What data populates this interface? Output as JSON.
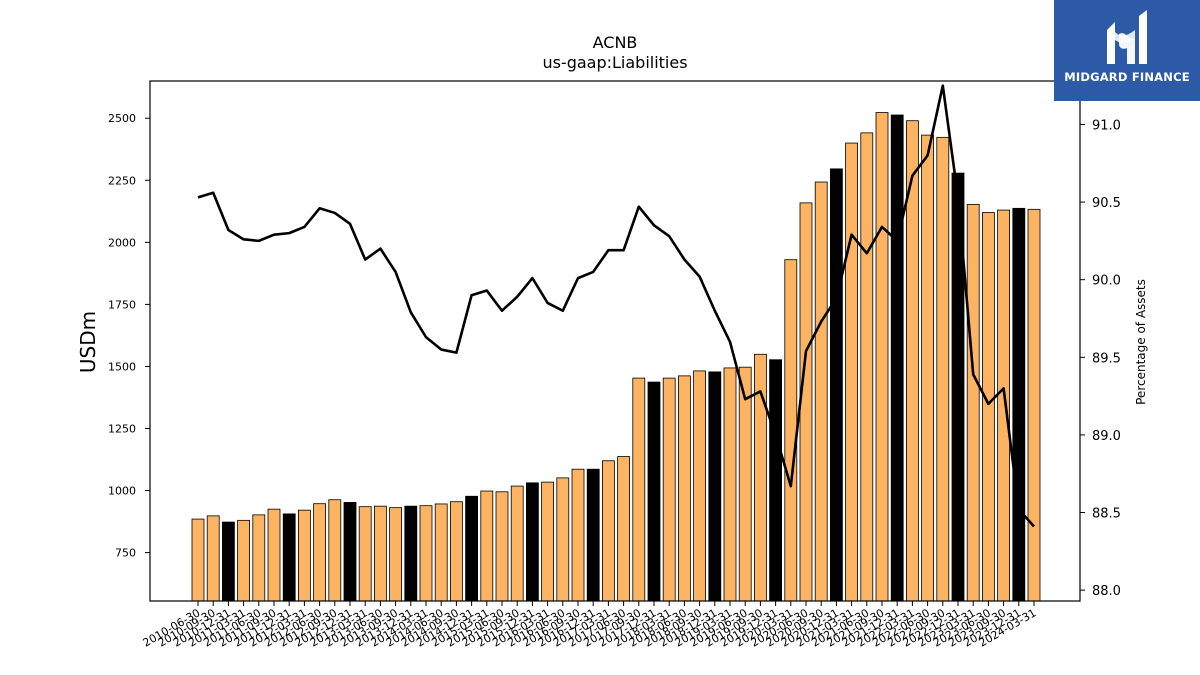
{
  "chart_data": {
    "type": "bar+line",
    "title": "ACNB",
    "subtitle": "us-gaap:Liabilities",
    "ylabel": "USDm",
    "y2label": "Percentage of Assets",
    "ylim": [
      555,
      2650
    ],
    "y2lim": [
      87.93,
      91.28
    ],
    "yticks": [
      750,
      1000,
      1250,
      1500,
      1750,
      2000,
      2250,
      2500
    ],
    "y2ticks": [
      "88.0",
      "88.5",
      "89.0",
      "89.5",
      "90.0",
      "90.5",
      "91.0"
    ],
    "grid": false,
    "bar_colors": {
      "quarter": "#fdb462",
      "year_end": "#000000",
      "edge": "#000000"
    },
    "line_color": "#000000",
    "categories": [
      "2010-06-30",
      "2010-09-30",
      "2010-12-31",
      "2011-03-31",
      "2011-06-30",
      "2011-09-30",
      "2011-12-31",
      "2012-03-31",
      "2012-06-30",
      "2012-09-30",
      "2012-12-31",
      "2013-03-31",
      "2013-06-30",
      "2013-09-30",
      "2013-12-31",
      "2014-03-31",
      "2014-06-30",
      "2014-09-30",
      "2014-12-31",
      "2015-03-31",
      "2015-06-30",
      "2015-09-30",
      "2015-12-31",
      "2016-03-31",
      "2016-06-30",
      "2016-09-30",
      "2016-12-31",
      "2017-03-31",
      "2017-06-30",
      "2017-09-30",
      "2017-12-31",
      "2018-03-31",
      "2018-06-30",
      "2018-09-30",
      "2018-12-31",
      "2019-03-31",
      "2019-06-30",
      "2019-09-30",
      "2019-12-31",
      "2020-03-31",
      "2020-06-30",
      "2020-09-30",
      "2020-12-31",
      "2021-03-31",
      "2021-06-30",
      "2021-09-30",
      "2021-12-31",
      "2022-03-31",
      "2022-06-30",
      "2022-09-30",
      "2022-12-31",
      "2023-03-31",
      "2023-06-30",
      "2023-09-30",
      "2023-12-31",
      "2024-03-31"
    ],
    "values": [
      885,
      898,
      873,
      880,
      902,
      925,
      906,
      921,
      947,
      963,
      952,
      935,
      937,
      931,
      937,
      939,
      946,
      955,
      977,
      998,
      995,
      1018,
      1031,
      1034,
      1051,
      1086,
      1086,
      1120,
      1137,
      1453,
      1437,
      1453,
      1462,
      1482,
      1478,
      1494,
      1497,
      1549,
      1527,
      1930,
      2159,
      2243,
      2296,
      2400,
      2441,
      2523,
      2513,
      2490,
      2432,
      2423,
      2279,
      2153,
      2120,
      2130,
      2137,
      2133
    ],
    "year_end": [
      false,
      false,
      true,
      false,
      false,
      false,
      true,
      false,
      false,
      false,
      true,
      false,
      false,
      false,
      true,
      false,
      false,
      false,
      true,
      false,
      false,
      false,
      true,
      false,
      false,
      false,
      true,
      false,
      false,
      false,
      true,
      false,
      false,
      false,
      true,
      false,
      false,
      false,
      true,
      false,
      false,
      false,
      true,
      false,
      false,
      false,
      true,
      false,
      false,
      false,
      true,
      false,
      false,
      false,
      true,
      false
    ],
    "series": [
      {
        "name": "Percentage of Assets",
        "axis": "right",
        "values": [
          90.53,
          90.56,
          90.32,
          90.26,
          90.25,
          90.29,
          90.3,
          90.34,
          90.46,
          90.43,
          90.36,
          90.13,
          90.2,
          90.05,
          89.79,
          89.63,
          89.55,
          89.53,
          89.9,
          89.93,
          89.8,
          89.89,
          90.01,
          89.85,
          89.8,
          90.01,
          90.05,
          90.19,
          90.19,
          90.47,
          90.35,
          90.28,
          90.13,
          90.02,
          89.8,
          89.6,
          89.23,
          89.28,
          89.0,
          88.67,
          89.54,
          89.73,
          89.88,
          90.29,
          90.17,
          90.34,
          90.25,
          90.67,
          90.8,
          91.25,
          90.53,
          89.39,
          89.2,
          89.3,
          88.52,
          88.41
        ]
      }
    ]
  },
  "logo": {
    "text": "MIDGARD FINANCE",
    "background": "#2d5aa7"
  }
}
